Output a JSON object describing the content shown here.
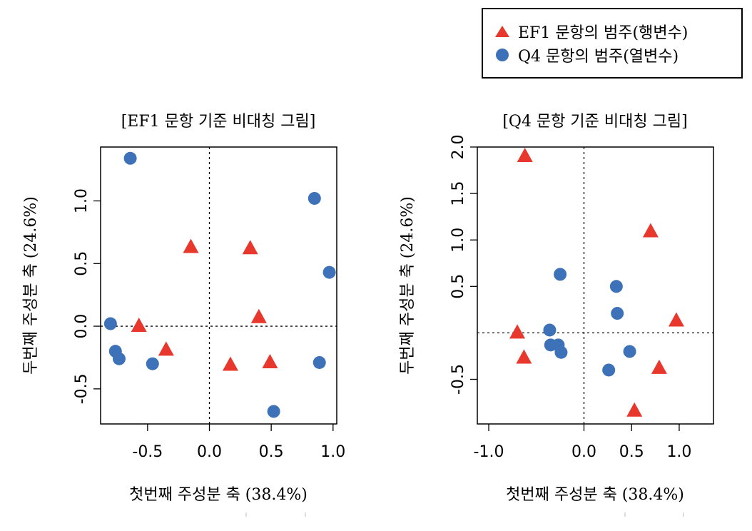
{
  "colors": {
    "triangle": "#e8372c",
    "circle": "#3d72b8",
    "axis": "#000000"
  },
  "legend": {
    "items": [
      {
        "shape": "triangle",
        "label": "EF1 문항의 범주(행변수)"
      },
      {
        "shape": "circle",
        "label": "Q4 문항의 범주(열변수)"
      }
    ]
  },
  "chart_data": [
    {
      "type": "scatter",
      "title": "[EF1 문항 기준 비대칭 그림]",
      "xlabel": "첫번째 주성분 축 (38.4%)",
      "ylabel": "두번째 주성분 축 (24.6%)",
      "xlim": [
        -0.88,
        1.03
      ],
      "ylim": [
        -0.78,
        1.43
      ],
      "xticks": [
        "-0.5",
        "0.0",
        "0.5",
        "1.0"
      ],
      "yticks": [
        "-0.5",
        "0.0",
        "0.5",
        "1.0"
      ],
      "series": [
        {
          "name": "EF1 문항의 범주(행변수)",
          "marker": "triangle",
          "points": [
            [
              -0.15,
              0.63
            ],
            [
              0.33,
              0.62
            ],
            [
              0.4,
              0.07
            ],
            [
              -0.57,
              0.0
            ],
            [
              -0.35,
              -0.19
            ],
            [
              0.17,
              -0.31
            ],
            [
              0.49,
              -0.29
            ]
          ]
        },
        {
          "name": "Q4 문항의 범주(열변수)",
          "marker": "circle",
          "points": [
            [
              -0.64,
              1.34
            ],
            [
              0.85,
              1.02
            ],
            [
              0.97,
              0.43
            ],
            [
              -0.8,
              0.02
            ],
            [
              -0.76,
              -0.2
            ],
            [
              -0.73,
              -0.26
            ],
            [
              -0.46,
              -0.3
            ],
            [
              0.89,
              -0.29
            ],
            [
              0.52,
              -0.68
            ]
          ]
        }
      ]
    },
    {
      "type": "scatter",
      "title": "[Q4 문항 기준 비대칭 그림]",
      "xlabel": "첫번째 주성분 축 (38.4%)",
      "ylabel": "두번째 주성분 축 (24.6%)",
      "xlim": [
        -1.12,
        1.36
      ],
      "ylim": [
        -0.98,
        2.0
      ],
      "xticks": [
        "-1.0",
        "0.0",
        "0.5",
        "1.0"
      ],
      "yticks": [
        "-0.5",
        "0.5",
        "1.0",
        "1.5",
        "2.0"
      ],
      "series": [
        {
          "name": "EF1 문항의 범주(행변수)",
          "marker": "triangle",
          "points": [
            [
              -0.62,
              1.9
            ],
            [
              0.7,
              1.09
            ],
            [
              0.97,
              0.13
            ],
            [
              -0.7,
              0.0
            ],
            [
              -0.63,
              -0.27
            ],
            [
              0.79,
              -0.38
            ],
            [
              0.53,
              -0.84
            ]
          ]
        },
        {
          "name": "Q4 문항의 범주(열변수)",
          "marker": "circle",
          "points": [
            [
              -0.25,
              0.63
            ],
            [
              0.34,
              0.5
            ],
            [
              0.35,
              0.21
            ],
            [
              -0.36,
              0.03
            ],
            [
              -0.35,
              -0.13
            ],
            [
              -0.27,
              -0.13
            ],
            [
              -0.24,
              -0.21
            ],
            [
              0.48,
              -0.2
            ],
            [
              0.26,
              -0.4
            ]
          ]
        }
      ]
    }
  ]
}
